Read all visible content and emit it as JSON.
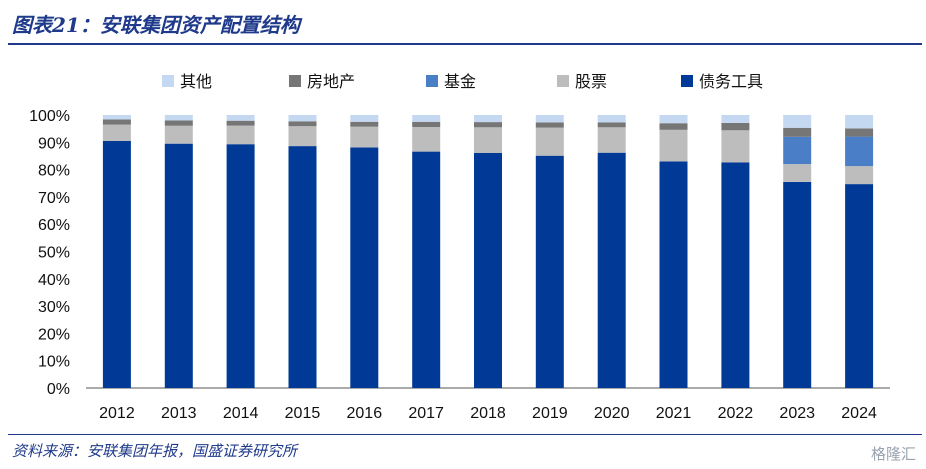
{
  "header": {
    "title": "图表21：安联集团资产配置结构"
  },
  "footer": {
    "source": "资料来源：安联集团年报，国盛证券研究所",
    "watermark": "格隆汇"
  },
  "colors": {
    "债务工具": "#003a96",
    "股票": "#bdbdbd",
    "基金": "#4a7fc8",
    "房地产": "#767676",
    "其他": "#c5d8f2"
  },
  "chart_data": {
    "type": "bar",
    "stacked": true,
    "title": "",
    "xlabel": "",
    "ylabel": "",
    "ylim": [
      0,
      100
    ],
    "yticks": [
      "0%",
      "10%",
      "20%",
      "30%",
      "40%",
      "50%",
      "60%",
      "70%",
      "80%",
      "90%",
      "100%"
    ],
    "grid": false,
    "legend_position": "top",
    "legend_order": [
      "其他",
      "房地产",
      "基金",
      "股票",
      "债务工具"
    ],
    "categories": [
      "2012",
      "2013",
      "2014",
      "2015",
      "2016",
      "2017",
      "2018",
      "2019",
      "2020",
      "2021",
      "2022",
      "2023",
      "2024"
    ],
    "series": [
      {
        "name": "债务工具",
        "values": [
          90.5,
          89.5,
          89.3,
          88.6,
          88.1,
          86.6,
          86.1,
          85.1,
          86.2,
          83.0,
          82.6,
          75.5,
          74.7
        ]
      },
      {
        "name": "股票",
        "values": [
          6.0,
          6.6,
          6.8,
          7.3,
          7.6,
          9.0,
          9.4,
          10.3,
          9.3,
          11.6,
          11.8,
          6.5,
          6.6
        ]
      },
      {
        "name": "基金",
        "values": [
          0,
          0,
          0,
          0,
          0,
          0,
          0,
          0,
          0,
          0,
          0,
          10.0,
          10.8
        ]
      },
      {
        "name": "房地产",
        "values": [
          1.9,
          1.9,
          1.8,
          1.8,
          1.8,
          1.9,
          1.9,
          1.9,
          1.8,
          2.4,
          2.7,
          3.3,
          3.0
        ]
      },
      {
        "name": "其他",
        "values": [
          1.6,
          2.0,
          2.1,
          2.3,
          2.5,
          2.5,
          2.6,
          2.7,
          2.7,
          3.0,
          2.9,
          4.7,
          4.9
        ]
      }
    ]
  }
}
